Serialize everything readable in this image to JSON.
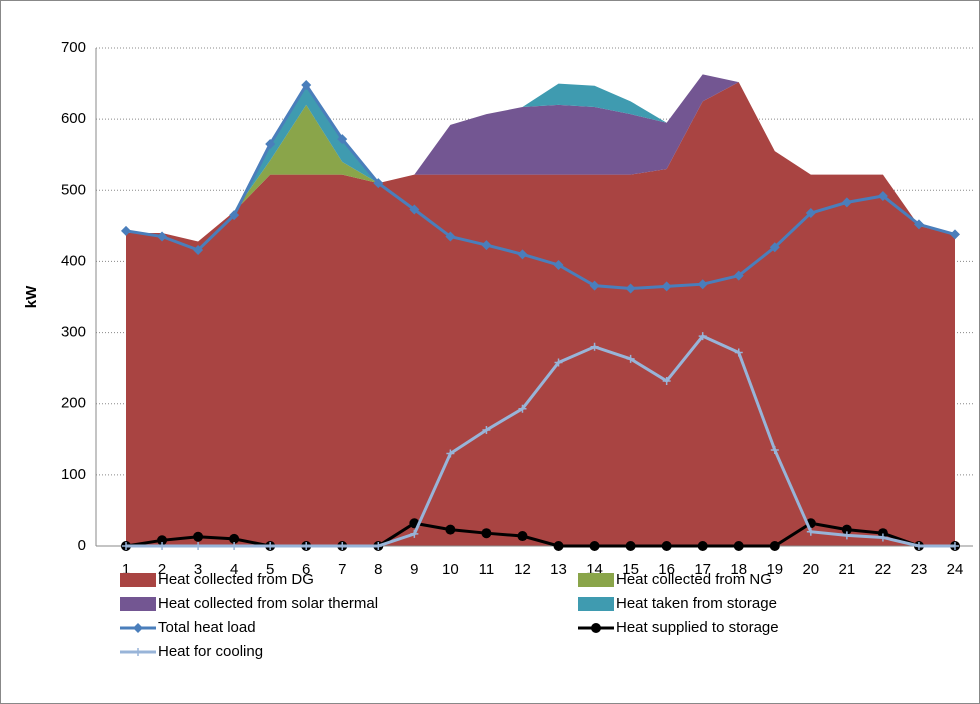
{
  "chart_data": {
    "type": "stacked-area-line",
    "y_axis_label": "kW",
    "categories": [
      "1",
      "2",
      "3",
      "4",
      "5",
      "6",
      "7",
      "8",
      "9",
      "10",
      "11",
      "12",
      "13",
      "14",
      "15",
      "16",
      "17",
      "18",
      "19",
      "20",
      "21",
      "22",
      "23",
      "24"
    ],
    "ylim": [
      0,
      700
    ],
    "yticks": [
      0,
      100,
      200,
      300,
      400,
      500,
      600,
      700
    ],
    "grid": true,
    "series": [
      {
        "name": "Heat collected from DG",
        "kind": "area",
        "color": "#a94442",
        "values": [
          440,
          440,
          428,
          470,
          522,
          522,
          522,
          510,
          522,
          522,
          522,
          522,
          522,
          522,
          522,
          530,
          625,
          652,
          555,
          522,
          522,
          522,
          450,
          437
        ]
      },
      {
        "name": "Heat collected from NG",
        "kind": "area",
        "color": "#8aa54a",
        "values": [
          0,
          0,
          0,
          0,
          20,
          98,
          18,
          0,
          0,
          0,
          0,
          0,
          0,
          0,
          0,
          0,
          0,
          0,
          0,
          0,
          0,
          0,
          0,
          0
        ]
      },
      {
        "name": "Heat collected from solar thermal",
        "kind": "area",
        "color": "#735692",
        "values": [
          0,
          0,
          0,
          0,
          0,
          0,
          0,
          0,
          0,
          70,
          85,
          95,
          98,
          95,
          85,
          65,
          38,
          0,
          0,
          0,
          0,
          0,
          0,
          0
        ]
      },
      {
        "name": "Heat taken from storage",
        "kind": "area",
        "color": "#3f9bb0",
        "values": [
          0,
          0,
          0,
          0,
          23,
          28,
          32,
          0,
          0,
          0,
          0,
          0,
          30,
          30,
          18,
          0,
          0,
          0,
          0,
          0,
          0,
          0,
          0,
          0
        ]
      },
      {
        "name": "Total heat load",
        "kind": "line",
        "marker": "diamond",
        "color": "#4a7ebb",
        "values": [
          443,
          435,
          416,
          465,
          565,
          648,
          572,
          510,
          473,
          435,
          423,
          410,
          395,
          366,
          362,
          365,
          368,
          380,
          420,
          468,
          483,
          492,
          452,
          438
        ]
      },
      {
        "name": "Heat supplied to storage",
        "kind": "line",
        "marker": "circle",
        "color": "#000000",
        "values": [
          0,
          8,
          13,
          10,
          0,
          0,
          0,
          0,
          32,
          23,
          18,
          14,
          0,
          0,
          0,
          0,
          0,
          0,
          0,
          32,
          23,
          18,
          0,
          0
        ]
      },
      {
        "name": "Heat for cooling",
        "kind": "line",
        "marker": "plus",
        "color": "#98b4d8",
        "values": [
          0,
          0,
          0,
          0,
          0,
          0,
          0,
          0,
          17,
          130,
          163,
          193,
          258,
          280,
          263,
          232,
          295,
          272,
          135,
          20,
          15,
          12,
          0,
          0
        ]
      }
    ]
  }
}
